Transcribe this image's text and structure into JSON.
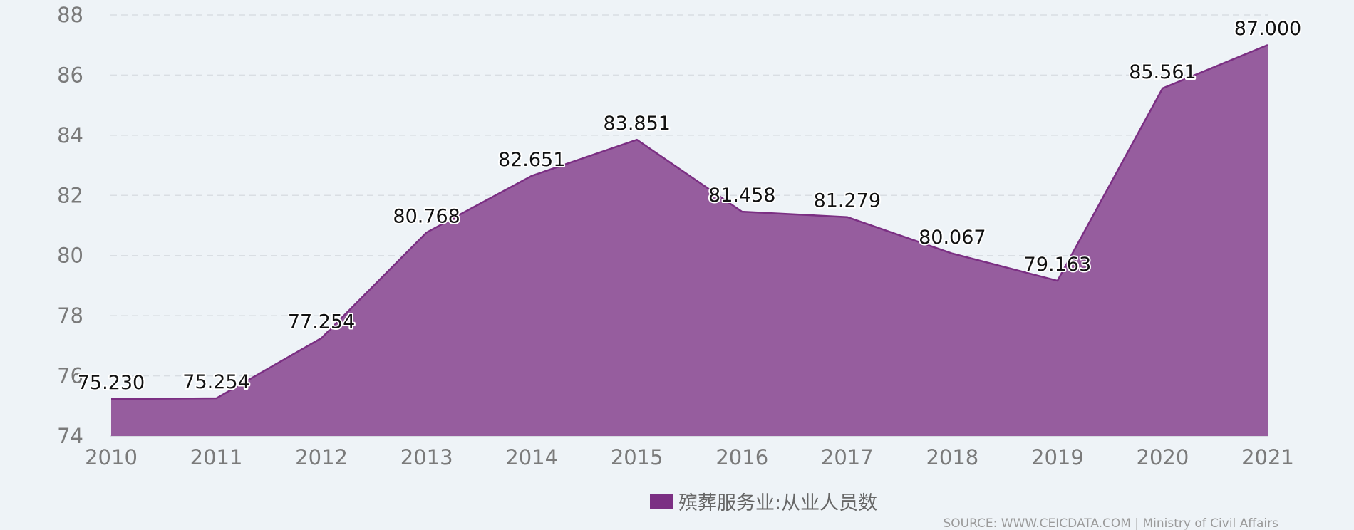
{
  "chart_data": {
    "type": "area",
    "categories": [
      "2010",
      "2011",
      "2012",
      "2013",
      "2014",
      "2015",
      "2016",
      "2017",
      "2018",
      "2019",
      "2020",
      "2021"
    ],
    "series": [
      {
        "name": "殡葬服务业:从业人员数",
        "values": [
          75.23,
          75.254,
          77.254,
          80.768,
          82.651,
          83.851,
          81.458,
          81.279,
          80.067,
          79.163,
          85.561,
          87.0
        ],
        "labels": [
          "75.230",
          "75.254",
          "77.254",
          "80.768",
          "82.651",
          "83.851",
          "81.458",
          "81.279",
          "80.067",
          "79.163",
          "85.561",
          "87.000"
        ]
      }
    ],
    "ylim": [
      74,
      88
    ],
    "yticks": [
      74,
      76,
      78,
      80,
      82,
      84,
      86,
      88
    ],
    "grid": true,
    "legend_position": "bottom",
    "colors": {
      "fill": "#965d9e",
      "line": "#7b2f83",
      "legend_swatch": "#7b2f83",
      "grid": "#d9dee3",
      "background": "#eef3f7"
    },
    "source": "SOURCE: WWW.CEICDATA.COM | Ministry of Civil Affairs"
  }
}
